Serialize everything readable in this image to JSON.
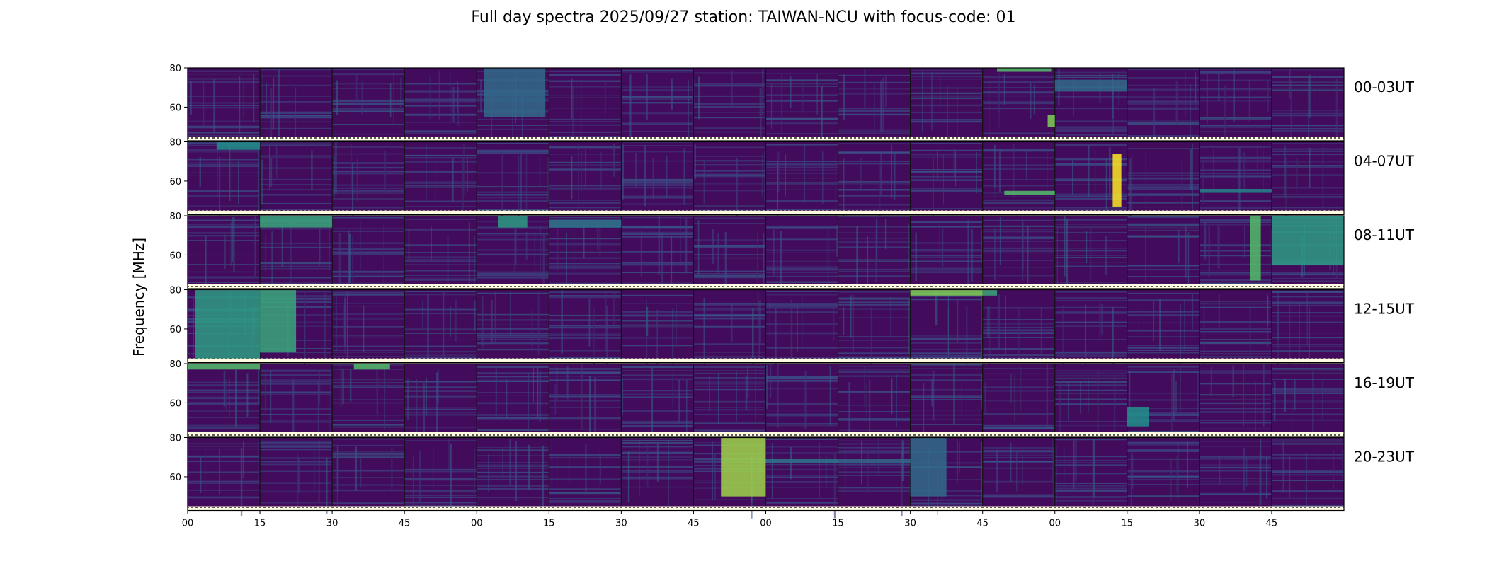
{
  "title": "Full day spectra 2025/09/27 station: TAIWAN-NCU with focus-code: 01",
  "chart_data": {
    "type": "heatmap",
    "title": "Full day spectra 2025/09/27 station: TAIWAN-NCU with focus-code: 01",
    "ylabel": "Frequency [MHz]",
    "xlabel": "",
    "ylim": [
      45,
      80
    ],
    "y_ticks": [
      "80",
      "60"
    ],
    "y_tick_values": [
      80,
      60
    ],
    "x_ticks": [
      "00",
      "15",
      "30",
      "45",
      "00",
      "15",
      "30",
      "45",
      "00",
      "15",
      "30",
      "45",
      "00",
      "15",
      "30",
      "45"
    ],
    "colormap": [
      "#440154",
      "#3b528b",
      "#21918c",
      "#5ec962",
      "#fde725"
    ],
    "panels_per_row": 16,
    "rows": [
      {
        "label": "00-03UT",
        "bursts": [
          {
            "panel": 4,
            "start": 0.1,
            "end": 0.95,
            "fmin": 55,
            "fmax": 80,
            "level": 0.35
          },
          {
            "panel": 11,
            "start": 0.2,
            "end": 0.95,
            "fmin": 78,
            "fmax": 80,
            "level": 0.7
          },
          {
            "panel": 11,
            "start": 0.9,
            "end": 1.0,
            "fmin": 50,
            "fmax": 56,
            "level": 0.8
          },
          {
            "panel": 12,
            "start": 0.0,
            "end": 1.0,
            "fmin": 68,
            "fmax": 74,
            "level": 0.35
          }
        ]
      },
      {
        "label": "04-07UT",
        "bursts": [
          {
            "panel": 0,
            "start": 0.4,
            "end": 1.0,
            "fmin": 76,
            "fmax": 80,
            "level": 0.5
          },
          {
            "panel": 11,
            "start": 0.3,
            "end": 1.0,
            "fmin": 53,
            "fmax": 55,
            "level": 0.7
          },
          {
            "panel": 12,
            "start": 0.8,
            "end": 0.92,
            "fmin": 47,
            "fmax": 74,
            "level": 1.0
          },
          {
            "panel": 14,
            "start": 0.0,
            "end": 1.0,
            "fmin": 54,
            "fmax": 56,
            "level": 0.45
          }
        ]
      },
      {
        "label": "08-11UT",
        "bursts": [
          {
            "panel": 1,
            "start": 0.0,
            "end": 1.0,
            "fmin": 74,
            "fmax": 80,
            "level": 0.6
          },
          {
            "panel": 4,
            "start": 0.3,
            "end": 0.7,
            "fmin": 74,
            "fmax": 80,
            "level": 0.55
          },
          {
            "panel": 5,
            "start": 0.0,
            "end": 1.0,
            "fmin": 74,
            "fmax": 78,
            "level": 0.4
          },
          {
            "panel": 14,
            "start": 0.7,
            "end": 0.85,
            "fmin": 47,
            "fmax": 80,
            "level": 0.7
          },
          {
            "panel": 15,
            "start": 0.0,
            "end": 1.0,
            "fmin": 55,
            "fmax": 80,
            "level": 0.55
          }
        ]
      },
      {
        "label": "12-15UT",
        "bursts": [
          {
            "panel": 0,
            "start": 0.1,
            "end": 1.0,
            "fmin": 45,
            "fmax": 80,
            "level": 0.55
          },
          {
            "panel": 1,
            "start": 0.0,
            "end": 0.5,
            "fmin": 48,
            "fmax": 80,
            "level": 0.6
          },
          {
            "panel": 10,
            "start": 0.0,
            "end": 1.0,
            "fmin": 77,
            "fmax": 80,
            "level": 0.8
          },
          {
            "panel": 11,
            "start": 0.0,
            "end": 0.2,
            "fmin": 77,
            "fmax": 80,
            "level": 0.6
          }
        ]
      },
      {
        "label": "16-19UT",
        "bursts": [
          {
            "panel": 0,
            "start": 0.0,
            "end": 1.0,
            "fmin": 77,
            "fmax": 80,
            "level": 0.7
          },
          {
            "panel": 2,
            "start": 0.3,
            "end": 0.8,
            "fmin": 77,
            "fmax": 80,
            "level": 0.7
          },
          {
            "panel": 13,
            "start": 0.0,
            "end": 0.3,
            "fmin": 48,
            "fmax": 58,
            "level": 0.5
          }
        ]
      },
      {
        "label": "20-23UT",
        "bursts": [
          {
            "panel": 7,
            "start": 0.38,
            "end": 1.0,
            "fmin": 50,
            "fmax": 80,
            "level": 0.85
          },
          {
            "panel": 8,
            "start": 0.0,
            "end": 1.0,
            "fmin": 67,
            "fmax": 69,
            "level": 0.4
          },
          {
            "panel": 9,
            "start": 0.0,
            "end": 1.0,
            "fmin": 67,
            "fmax": 69,
            "level": 0.35
          },
          {
            "panel": 10,
            "start": 0.0,
            "end": 0.5,
            "fmin": 50,
            "fmax": 80,
            "level": 0.35
          }
        ]
      }
    ]
  }
}
